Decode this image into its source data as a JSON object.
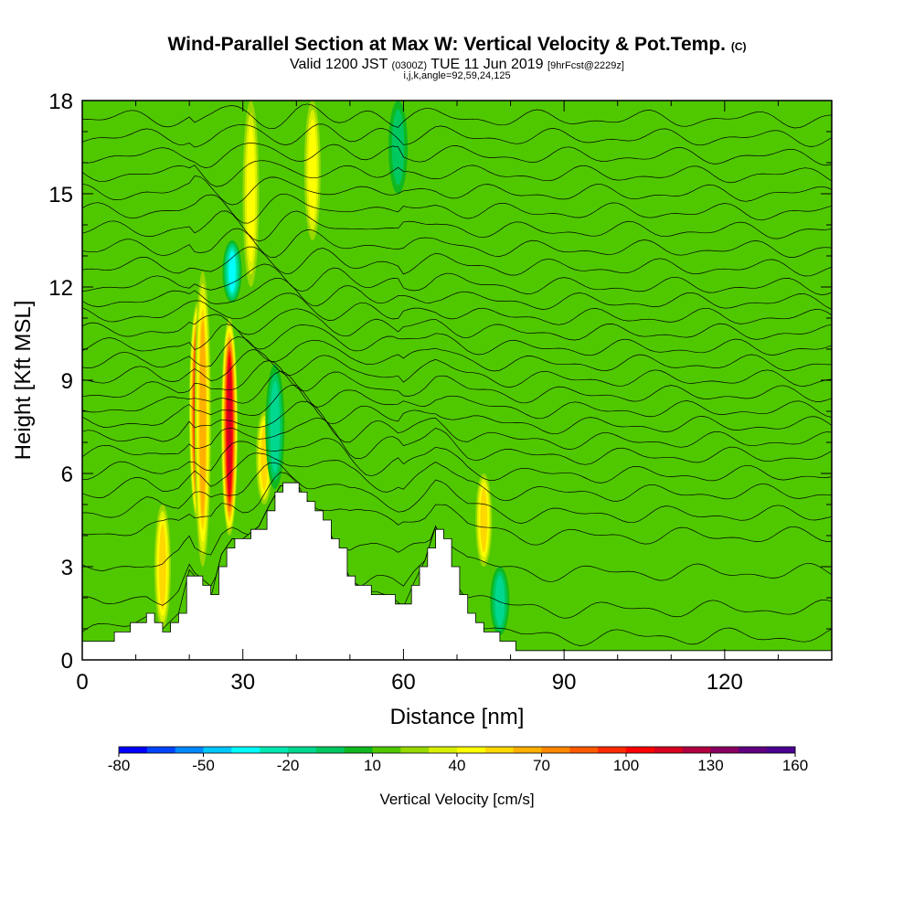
{
  "header": {
    "title_main": "Wind-Parallel Section at Max W: Vertical Velocity & Pot.Temp.",
    "title_mark": "(C)",
    "valid_pre": "Valid 1200 JST",
    "valid_utc": "(0300Z)",
    "valid_date": "TUE 11 Jun 2019",
    "valid_fcst": "[9hrFcst@2229z]",
    "indices": "i,j,k,angle=92,59,24,125"
  },
  "colorbar": {
    "title": "Vertical Velocity [cm/s]",
    "labels": [
      "-80",
      "-50",
      "-20",
      "10",
      "40",
      "70",
      "100",
      "130",
      "160"
    ],
    "colors": [
      "#0000ff",
      "#0044ff",
      "#0088ff",
      "#00c8ff",
      "#00ffff",
      "#00e8b0",
      "#00d890",
      "#00c860",
      "#10b820",
      "#50c800",
      "#98d800",
      "#d8f000",
      "#ffff00",
      "#ffd800",
      "#ffb000",
      "#ff8800",
      "#ff5a00",
      "#ff2a00",
      "#ff0000",
      "#d80020",
      "#b00040",
      "#880060",
      "#600080",
      "#4a0090"
    ]
  },
  "chart_data": {
    "type": "heatmap",
    "title": "Wind-Parallel Section at Max W: Vertical Velocity & Pot.Temp.",
    "xlabel": "Distance [nm]",
    "ylabel": "Height [Kft MSL]",
    "xlim": [
      0,
      140
    ],
    "ylim": [
      0,
      18
    ],
    "x_ticks": [
      "0",
      "30",
      "60",
      "90",
      "120"
    ],
    "y_ticks": [
      "0",
      "3",
      "6",
      "9",
      "12",
      "15",
      "18"
    ],
    "colorbar_range": [
      -80,
      160
    ],
    "background_value": 10,
    "updraft_cores": [
      {
        "x": 15,
        "z_min": 1.0,
        "z_max": 5.0,
        "w": 55
      },
      {
        "x": 21.5,
        "z_min": 4.5,
        "z_max": 11.5,
        "w": 110
      },
      {
        "x": 22.5,
        "z_min": 3.0,
        "z_max": 12.5,
        "w": 60
      },
      {
        "x": 27.5,
        "z_min": 4.0,
        "z_max": 11.0,
        "w": 115
      },
      {
        "x": 34,
        "z_min": 5.0,
        "z_max": 8.0,
        "w": 55
      },
      {
        "x": 31.5,
        "z_min": 12.0,
        "z_max": 18.0,
        "w": 45
      },
      {
        "x": 43,
        "z_min": 13.5,
        "z_max": 18.0,
        "w": 40
      },
      {
        "x": 75,
        "z_min": 3.0,
        "z_max": 6.0,
        "w": 50
      }
    ],
    "downdraft_cores": [
      {
        "x": 28,
        "z_min": 11.5,
        "z_max": 13.5,
        "w": -45
      },
      {
        "x": 36,
        "z_min": 5.5,
        "z_max": 9.5,
        "w": -25
      },
      {
        "x": 78,
        "z_min": 0.8,
        "z_max": 3.0,
        "w": -25
      },
      {
        "x": 59,
        "z_min": 15.0,
        "z_max": 18.0,
        "w": -15
      }
    ],
    "terrain_profile": {
      "x": [
        0,
        4,
        8,
        12,
        15,
        18,
        20,
        22,
        24,
        26,
        28,
        30,
        33,
        35,
        37,
        40,
        42,
        45,
        48,
        50,
        53,
        55,
        58,
        60,
        62,
        64,
        66,
        68,
        70,
        72,
        75,
        78,
        82,
        86,
        88,
        90,
        140
      ],
      "z": [
        0.6,
        0.6,
        1.0,
        1.4,
        1.0,
        1.5,
        2.9,
        2.5,
        2.0,
        3.4,
        3.9,
        3.9,
        4.3,
        5.0,
        5.6,
        5.6,
        5.0,
        4.5,
        3.5,
        2.6,
        2.2,
        2.2,
        2.0,
        1.7,
        2.5,
        3.2,
        4.3,
        3.6,
        2.4,
        1.4,
        1.0,
        0.6,
        0.35,
        0.3,
        0.3,
        0.3,
        0.3
      ]
    },
    "isentrope_levels_kft": [
      0.6,
      1.5,
      2.7,
      3.9,
      4.6,
      5.3,
      5.9,
      6.5,
      7.0,
      7.5,
      8.0,
      8.5,
      9.0,
      9.5,
      10.0,
      10.5,
      11.0,
      11.5,
      12.0,
      12.6,
      13.2,
      13.8,
      14.4,
      15.0,
      15.6,
      16.2,
      16.8,
      17.4
    ]
  }
}
